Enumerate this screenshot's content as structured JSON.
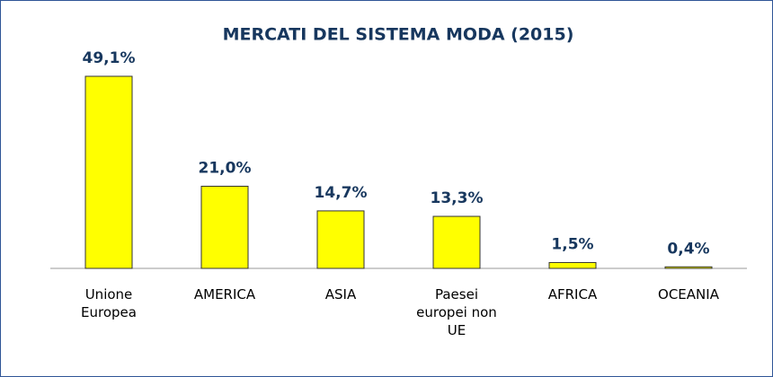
{
  "chart_data": {
    "type": "bar",
    "title": "MERCATI DEL SISTEMA MODA (2015)",
    "categories": [
      "Unione Europea",
      "AMERICA",
      "ASIA",
      "Paesei europei non UE",
      "AFRICA",
      "OCEANIA"
    ],
    "values": [
      49.1,
      21.0,
      14.7,
      13.3,
      1.5,
      0.4
    ],
    "value_labels": [
      "49,1%",
      "21,0%",
      "14,7%",
      "13,3%",
      "1,5%",
      "0,4%"
    ],
    "color": "#ffff00"
  }
}
